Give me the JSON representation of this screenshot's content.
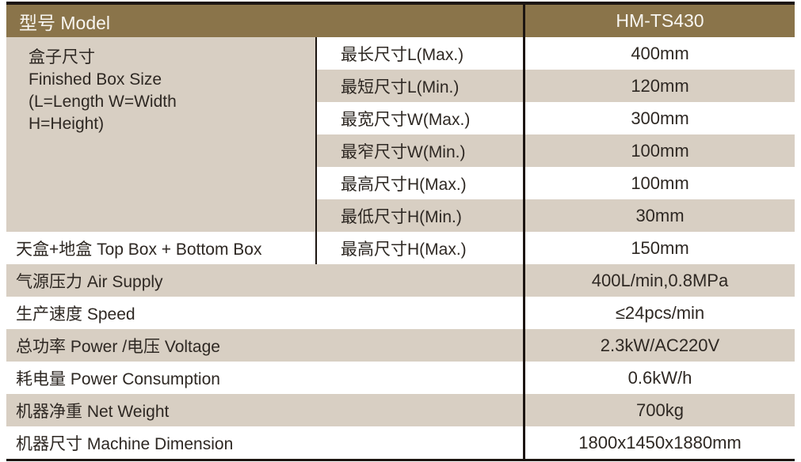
{
  "colors": {
    "header_bg": "#8a744a",
    "stripe_bg": "#d8cfc3",
    "border": "#1c1511",
    "text": "#2e2823",
    "header_text": "#f8f6f1"
  },
  "header": {
    "model_label": "型号 Model",
    "model_value": "HM-TS430"
  },
  "box_size": {
    "label": "盒子尺寸\nFinished Box Size\n(L=Length  W=Width\nH=Height)",
    "rows": [
      {
        "label": "最长尺寸L(Max.)",
        "value": "400mm"
      },
      {
        "label": "最短尺寸L(Min.)",
        "value": "120mm"
      },
      {
        "label": "最宽尺寸W(Max.)",
        "value": "300mm"
      },
      {
        "label": "最窄尺寸W(Min.)",
        "value": "100mm"
      },
      {
        "label": "最高尺寸H(Max.)",
        "value": "100mm"
      },
      {
        "label": "最低尺寸H(Min.)",
        "value": "30mm"
      }
    ]
  },
  "top_bottom_box": {
    "label": "天盒+地盒 Top Box + Bottom Box",
    "sub_label": "最高尺寸H(Max.)",
    "value": "150mm"
  },
  "spec_rows": [
    {
      "label": "气源压力 Air Supply",
      "value": "400L/min,0.8MPa"
    },
    {
      "label": "生产速度 Speed",
      "value": "≤24pcs/min"
    },
    {
      "label": "总功率 Power /电压 Voltage",
      "value": "2.3kW/AC220V"
    },
    {
      "label": "耗电量 Power Consumption",
      "value": "0.6kW/h"
    },
    {
      "label": "机器净重 Net Weight",
      "value": "700kg"
    },
    {
      "label": "机器尺寸 Machine Dimension",
      "value": "1800x1450x1880mm"
    }
  ]
}
